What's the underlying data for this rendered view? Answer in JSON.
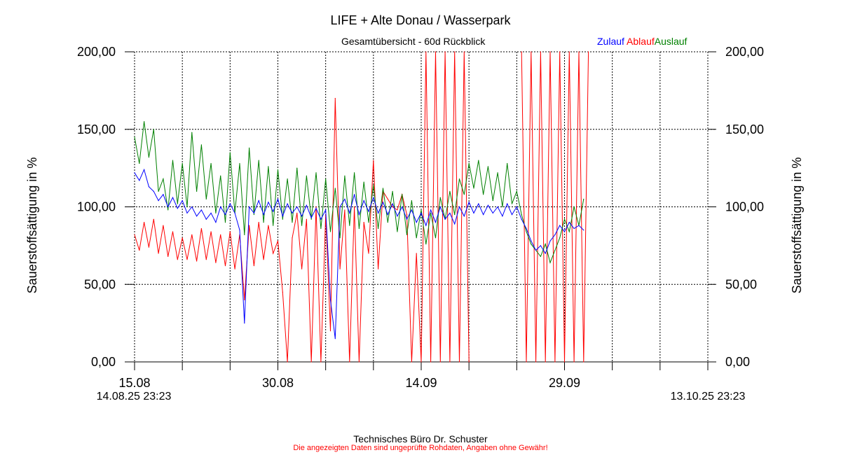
{
  "chart_data": {
    "type": "line",
    "title": "LIFE + Alte Donau / Wasserpark",
    "subtitle": "Gesamtübersicht - 60d Rückblick",
    "ylabel_left": "Sauerstoffsättigung in %",
    "ylabel_right": "Sauerstoffsättigung in %",
    "ylim": [
      0,
      200
    ],
    "yticks": [
      "0,00",
      "50,00",
      "100,00",
      "150,00",
      "200,00"
    ],
    "ytick_values": [
      0,
      50,
      100,
      150,
      200
    ],
    "xlim_days": [
      0,
      60
    ],
    "xgrid_step_days": 5,
    "xticks": [
      {
        "day": 0,
        "label": "15.08"
      },
      {
        "day": 15,
        "label": "30.08"
      },
      {
        "day": 30,
        "label": "14.09"
      },
      {
        "day": 45,
        "label": "29.09"
      }
    ],
    "x_start_label": "14.08.25 23:23",
    "x_end_label": "13.10.25 23:23",
    "grid": true,
    "legend_position": "top-right",
    "x_step_days": 0.5,
    "series": [
      {
        "name": "Zulauf",
        "color": "#0000ff",
        "values": [
          122,
          117,
          124,
          113,
          110,
          104,
          108,
          100,
          106,
          99,
          104,
          96,
          100,
          94,
          98,
          92,
          96,
          90,
          100,
          95,
          102,
          96,
          85,
          25,
          100,
          96,
          104,
          95,
          103,
          97,
          105,
          94,
          102,
          96,
          100,
          94,
          101,
          93,
          99,
          92,
          98,
          40,
          15,
          100,
          105,
          96,
          108,
          95,
          104,
          97,
          106,
          96,
          103,
          95,
          102,
          94,
          100,
          92,
          98,
          90,
          96,
          88,
          98,
          90,
          100,
          92,
          96,
          89,
          100,
          94,
          103,
          96,
          102,
          95,
          101,
          96,
          100,
          94,
          102,
          95,
          100,
          92,
          86,
          78,
          72,
          75,
          70,
          78,
          82,
          88,
          84,
          90,
          86,
          88,
          85
        ]
      },
      {
        "name": "Ablauf",
        "color": "#ff0000",
        "values": [
          82,
          72,
          90,
          74,
          92,
          70,
          88,
          68,
          84,
          66,
          80,
          66,
          82,
          65,
          86,
          66,
          84,
          64,
          82,
          62,
          84,
          60,
          82,
          40,
          88,
          62,
          90,
          66,
          88,
          70,
          78,
          45,
          0,
          80,
          96,
          60,
          92,
          0,
          100,
          0,
          95,
          20,
          170,
          60,
          98,
          0,
          100,
          0,
          90,
          70,
          130,
          60,
          110,
          105,
          100,
          98,
          108,
          95,
          0,
          70,
          0,
          200,
          0,
          200,
          0,
          200,
          0,
          200,
          0,
          200,
          0,
          null,
          null,
          null,
          null,
          null,
          null,
          null,
          null,
          null,
          null,
          200,
          0,
          200,
          0,
          200,
          0,
          200,
          0,
          200,
          0,
          200,
          0,
          200,
          0,
          200
        ]
      },
      {
        "name": "Auslauf",
        "color": "#008000",
        "values": [
          145,
          128,
          155,
          132,
          150,
          110,
          118,
          98,
          130,
          102,
          128,
          100,
          148,
          110,
          140,
          105,
          128,
          96,
          120,
          90,
          135,
          96,
          128,
          82,
          138,
          95,
          130,
          90,
          126,
          88,
          124,
          92,
          118,
          90,
          125,
          88,
          120,
          92,
          122,
          86,
          118,
          84,
          112,
          80,
          120,
          88,
          122,
          86,
          116,
          90,
          114,
          86,
          112,
          90,
          110,
          84,
          108,
          82,
          104,
          80,
          98,
          76,
          96,
          80,
          106,
          92,
          110,
          95,
          118,
          108,
          128,
          112,
          130,
          108,
          126,
          104,
          122,
          100,
          128,
          102,
          110,
          95,
          84,
          76,
          72,
          68,
          76,
          64,
          72,
          80,
          92,
          84,
          100,
          88,
          105
        ]
      }
    ]
  },
  "footer": {
    "company": "Technisches Büro Dr. Schuster",
    "disclaimer": "Die angezeigten Daten sind ungeprüfte Rohdaten, Angaben ohne Gewähr!"
  }
}
